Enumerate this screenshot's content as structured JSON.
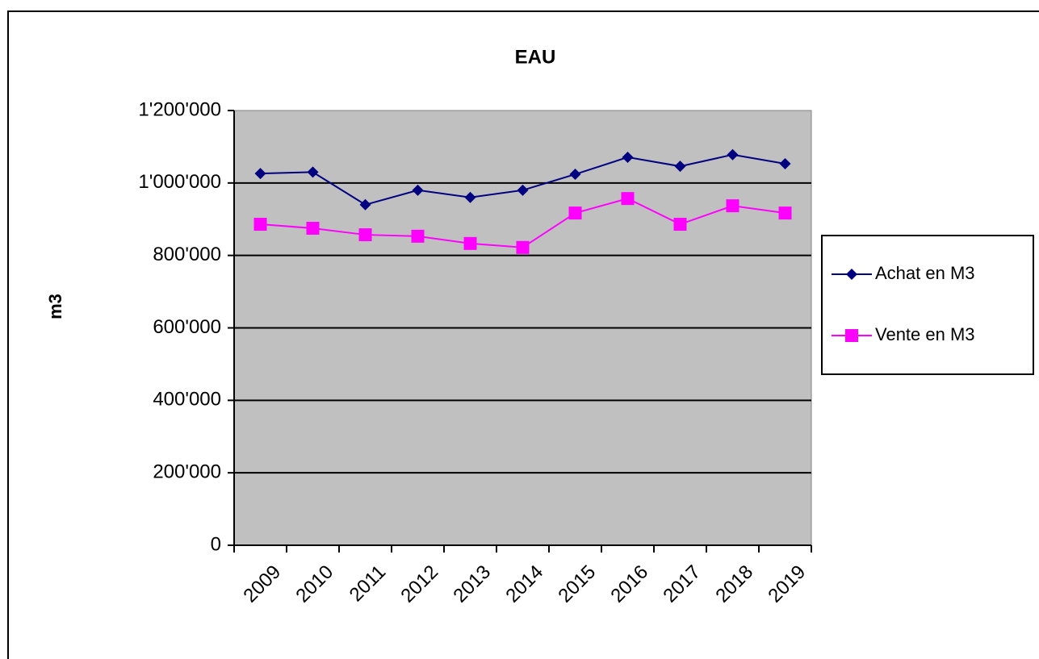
{
  "chart_data": {
    "type": "line",
    "title": "EAU",
    "y_label": "m3",
    "categories": [
      "2009",
      "2010",
      "2011",
      "2012",
      "2013",
      "2014",
      "2015",
      "2016",
      "2017",
      "2018",
      "2019"
    ],
    "series": [
      {
        "name": "Achat en M3",
        "color": "#000080",
        "marker": "diamond",
        "values": [
          1026000,
          1030000,
          940000,
          980000,
          960000,
          980000,
          1024000,
          1071000,
          1046000,
          1078000,
          1053000
        ]
      },
      {
        "name": "Vente en M3",
        "color": "#ff00ff",
        "marker": "square",
        "values": [
          886000,
          875000,
          857000,
          853000,
          833000,
          822000,
          917000,
          957000,
          886000,
          937000,
          917000
        ]
      }
    ],
    "ylim": [
      0,
      1200000
    ],
    "yticks": [
      0,
      {
        "value": 200000,
        "label": "200'000"
      },
      {
        "value": 400000,
        "label": "400'000"
      },
      {
        "value": 600000,
        "label": "600'000"
      },
      {
        "value": 800000,
        "label": "800'000"
      },
      {
        "value": 1000000,
        "label": "1'000'000"
      },
      {
        "value": 1200000,
        "label": "1'200'000"
      }
    ],
    "grid": true,
    "legend": "right",
    "plot_background": "#c0c0c0"
  }
}
